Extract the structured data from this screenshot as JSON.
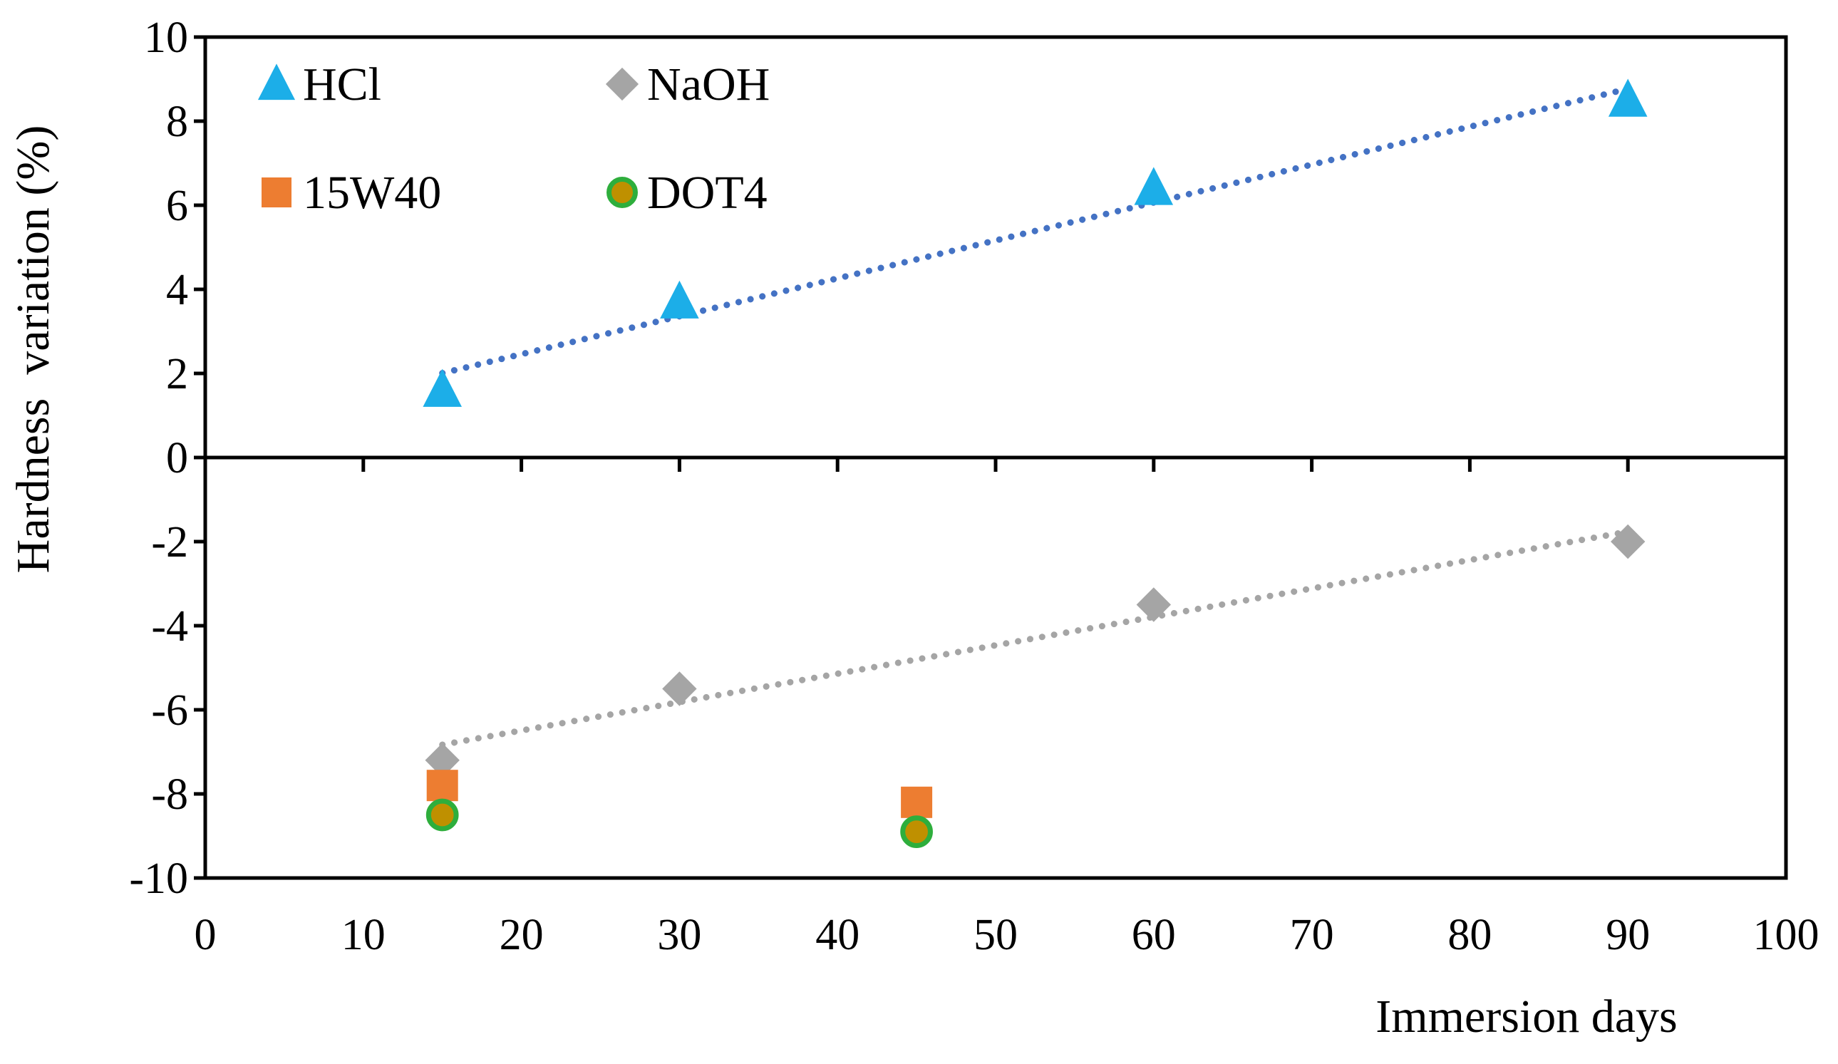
{
  "chart_data": {
    "type": "scatter",
    "title": "",
    "xlabel": "Immersion days",
    "ylabel": "Hardness  variation (%)",
    "xlim": [
      0,
      100
    ],
    "ylim": [
      -10,
      10
    ],
    "x_ticks": [
      0,
      10,
      20,
      30,
      40,
      50,
      60,
      70,
      80,
      90,
      100
    ],
    "y_ticks": [
      10,
      8,
      6,
      4,
      2,
      0,
      -2,
      -4,
      -6,
      -8,
      -10
    ],
    "grid": false,
    "legend_position": "top-left",
    "series": [
      {
        "name": "HCl",
        "marker": "triangle",
        "color": "#1CAEE8",
        "x": [
          15,
          30,
          60,
          90
        ],
        "y": [
          1.6,
          3.7,
          6.4,
          8.5
        ],
        "trendline": {
          "type": "linear",
          "style": "dotted",
          "color": "#4472C4"
        }
      },
      {
        "name": "NaOH",
        "marker": "diamond",
        "color": "#A5A5A5",
        "x": [
          15,
          30,
          60,
          90
        ],
        "y": [
          -7.2,
          -5.5,
          -3.5,
          -2.0
        ],
        "trendline": {
          "type": "linear",
          "style": "dotted",
          "color": "#A5A5A5"
        }
      },
      {
        "name": "15W40",
        "marker": "square",
        "color": "#ED7D31",
        "x": [
          15,
          45
        ],
        "y": [
          -7.8,
          -8.2
        ]
      },
      {
        "name": "DOT4",
        "marker": "circle",
        "color": "#BF9000",
        "edge_color": "#2EAE3C",
        "x": [
          15,
          45
        ],
        "y": [
          -8.5,
          -8.9
        ]
      }
    ]
  }
}
